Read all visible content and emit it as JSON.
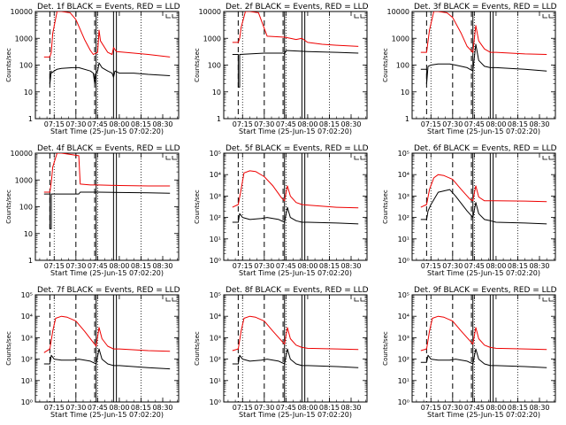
{
  "colors": {
    "events": "#000000",
    "lld": "#ee0000",
    "background": "#ffffff"
  },
  "x_tick_labels": [
    "07:15",
    "07:30",
    "07:45",
    "08:00",
    "08:15",
    "08:30"
  ],
  "xlabel": "Start Time (25-Jun-15 07:02:20)",
  "ylabel": "Counts/sec",
  "chart_data": [
    {
      "type": "line",
      "title": "Det. 1f  BLACK = Events, RED = LLD",
      "yscale": "log",
      "ylim": [
        1,
        10000
      ],
      "y_tick_labels": [
        "1",
        "10",
        "100",
        "1000",
        "10000"
      ],
      "xlabel": "Start Time (25-Jun-15 07:02:20)",
      "ylabel": "Counts/sec",
      "legend": "top-right",
      "series": [
        {
          "name": "Events",
          "x": [
            "07:12",
            "07:12",
            "07:13",
            "07:13",
            "07:15",
            "07:17",
            "07:20",
            "07:28",
            "07:32",
            "07:40",
            "07:42",
            "07:43",
            "07:44",
            "07:45",
            "07:46",
            "07:48",
            "07:52",
            "07:55",
            "07:56",
            "07:57",
            "08:00",
            "08:10",
            "08:20",
            "08:35"
          ],
          "values": [
            60,
            20,
            60,
            50,
            60,
            70,
            75,
            80,
            80,
            60,
            50,
            20,
            50,
            60,
            120,
            80,
            60,
            50,
            35,
            60,
            50,
            50,
            45,
            40
          ]
        },
        {
          "name": "LLD",
          "x": [
            "07:08",
            "07:12",
            "07:13",
            "07:14",
            "07:17",
            "07:20",
            "07:26",
            "07:30",
            "07:36",
            "07:40",
            "07:42",
            "07:45",
            "07:46",
            "07:47",
            "07:52",
            "07:55",
            "07:56",
            "07:58",
            "08:10",
            "08:20",
            "08:35"
          ],
          "values": [
            200,
            200,
            300,
            1500,
            10000,
            10000,
            9000,
            5000,
            900,
            350,
            250,
            300,
            2000,
            800,
            300,
            250,
            450,
            320,
            280,
            250,
            200
          ]
        }
      ]
    },
    {
      "type": "line",
      "title": "Det. 2f  BLACK = Events, RED = LLD",
      "yscale": "log",
      "ylim": [
        1,
        10000
      ],
      "y_tick_labels": [
        "1",
        "10",
        "100",
        "1000",
        "10000"
      ],
      "xlabel": "Start Time (25-Jun-15 07:02:20)",
      "ylabel": "Counts/sec",
      "legend": "top-right",
      "series": [
        {
          "name": "Events",
          "x": [
            "07:08",
            "07:12",
            "07:12",
            "07:13",
            "07:13",
            "07:30",
            "07:43",
            "07:44",
            "07:45",
            "08:00",
            "08:20",
            "08:35"
          ],
          "values": [
            250,
            250,
            15,
            15,
            250,
            280,
            280,
            260,
            350,
            320,
            300,
            280
          ]
        },
        {
          "name": "LLD",
          "x": [
            "07:08",
            "07:12",
            "07:13",
            "07:14",
            "07:17",
            "07:20",
            "07:26",
            "07:32",
            "07:44",
            "07:48",
            "07:52",
            "07:56",
            "08:00",
            "08:10",
            "08:20",
            "08:35"
          ],
          "values": [
            700,
            700,
            1000,
            2500,
            10000,
            10000,
            9000,
            1200,
            1100,
            1000,
            900,
            1000,
            700,
            600,
            550,
            500
          ]
        }
      ]
    },
    {
      "type": "line",
      "title": "Det. 3f  BLACK = Events, RED = LLD",
      "yscale": "log",
      "ylim": [
        1,
        10000
      ],
      "y_tick_labels": [
        "1",
        "10",
        "100",
        "1000",
        "10000"
      ],
      "xlabel": "Start Time (25-Jun-15 07:02:20)",
      "ylabel": "Counts/sec",
      "legend": "top-right",
      "series": [
        {
          "name": "Events",
          "x": [
            "07:08",
            "07:12",
            "07:12",
            "07:13",
            "07:15",
            "07:20",
            "07:28",
            "07:32",
            "07:40",
            "07:44",
            "07:46",
            "07:48",
            "07:52",
            "07:56",
            "08:00",
            "08:20",
            "08:35"
          ],
          "values": [
            70,
            70,
            20,
            90,
            100,
            110,
            110,
            100,
            80,
            60,
            600,
            150,
            90,
            80,
            80,
            70,
            60
          ]
        },
        {
          "name": "LLD",
          "x": [
            "07:08",
            "07:12",
            "07:14",
            "07:17",
            "07:20",
            "07:26",
            "07:30",
            "07:36",
            "07:40",
            "07:44",
            "07:46",
            "07:48",
            "07:52",
            "07:56",
            "08:00",
            "08:20",
            "08:35"
          ],
          "values": [
            300,
            300,
            2000,
            10000,
            10000,
            9000,
            6000,
            1500,
            500,
            300,
            3000,
            800,
            400,
            300,
            300,
            260,
            250
          ]
        }
      ]
    },
    {
      "type": "line",
      "title": "Det. 4f  BLACK = Events, RED = LLD",
      "yscale": "log",
      "ylim": [
        1,
        10000
      ],
      "y_tick_labels": [
        "1",
        "10",
        "100",
        "1000",
        "10000"
      ],
      "xlabel": "Start Time (25-Jun-15 07:02:20)",
      "ylabel": "Counts/sec",
      "legend": "top-right",
      "series": [
        {
          "name": "Events",
          "x": [
            "07:08",
            "07:12",
            "07:12",
            "07:13",
            "07:13",
            "07:32",
            "07:33",
            "07:40",
            "07:45",
            "08:00",
            "08:20",
            "08:35"
          ],
          "values": [
            300,
            300,
            15,
            15,
            300,
            300,
            350,
            350,
            350,
            340,
            330,
            320
          ]
        },
        {
          "name": "LLD",
          "x": [
            "07:08",
            "07:12",
            "07:13",
            "07:14",
            "07:17",
            "07:20",
            "07:26",
            "07:32",
            "07:33",
            "07:40",
            "07:45",
            "08:00",
            "08:20",
            "08:35"
          ],
          "values": [
            350,
            350,
            800,
            3000,
            10000,
            10000,
            9000,
            8000,
            700,
            650,
            650,
            620,
            600,
            600
          ]
        }
      ]
    },
    {
      "type": "line",
      "title": "Det. 5f  BLACK = Events, RED = LLD",
      "yscale": "log",
      "ylim": [
        1,
        100000
      ],
      "y_tick_labels": [
        "10⁰",
        "10¹",
        "10²",
        "10³",
        "10⁴",
        "10⁵"
      ],
      "xlabel": "Start Time (25-Jun-15 07:02:20)",
      "ylabel": "Counts/sec",
      "legend": "top-right",
      "series": [
        {
          "name": "Events",
          "x": [
            "07:08",
            "07:12",
            "07:13",
            "07:15",
            "07:20",
            "07:28",
            "07:32",
            "07:40",
            "07:44",
            "07:46",
            "07:48",
            "07:52",
            "07:56",
            "08:00",
            "08:20",
            "08:35"
          ],
          "values": [
            60,
            60,
            150,
            100,
            80,
            90,
            100,
            80,
            60,
            300,
            100,
            70,
            60,
            60,
            55,
            50
          ]
        },
        {
          "name": "LLD",
          "x": [
            "07:08",
            "07:12",
            "07:14",
            "07:16",
            "07:20",
            "07:24",
            "07:30",
            "07:36",
            "07:42",
            "07:44",
            "07:46",
            "07:48",
            "07:52",
            "07:56",
            "08:00",
            "08:20",
            "08:35"
          ],
          "values": [
            300,
            400,
            2000,
            12000,
            15000,
            14000,
            8000,
            3000,
            800,
            600,
            3000,
            1000,
            500,
            400,
            380,
            300,
            280
          ]
        }
      ]
    },
    {
      "type": "line",
      "title": "Det. 6f  BLACK = Events, RED = LLD",
      "yscale": "log",
      "ylim": [
        1,
        100000
      ],
      "y_tick_labels": [
        "10⁰",
        "10¹",
        "10²",
        "10³",
        "10⁴",
        "10⁵"
      ],
      "xlabel": "Start Time (25-Jun-15 07:02:20)",
      "ylabel": "Counts/sec",
      "legend": "top-right",
      "series": [
        {
          "name": "Events",
          "x": [
            "07:08",
            "07:12",
            "07:13",
            "07:15",
            "07:20",
            "07:28",
            "07:32",
            "07:40",
            "07:44",
            "07:46",
            "07:48",
            "07:52",
            "07:56",
            "08:00",
            "08:20",
            "08:35"
          ],
          "values": [
            80,
            80,
            200,
            400,
            1500,
            2000,
            1000,
            200,
            100,
            500,
            150,
            80,
            70,
            60,
            55,
            50
          ]
        },
        {
          "name": "LLD",
          "x": [
            "07:08",
            "07:12",
            "07:14",
            "07:17",
            "07:20",
            "07:24",
            "07:30",
            "07:36",
            "07:42",
            "07:44",
            "07:46",
            "07:48",
            "07:52",
            "07:56",
            "08:00",
            "08:20",
            "08:35"
          ],
          "values": [
            300,
            400,
            2000,
            7000,
            10000,
            9000,
            6000,
            2000,
            700,
            600,
            3000,
            900,
            600,
            600,
            600,
            580,
            550
          ]
        }
      ]
    },
    {
      "type": "line",
      "title": "Det. 7f  BLACK = Events, RED = LLD",
      "yscale": "log",
      "ylim": [
        1,
        100000
      ],
      "y_tick_labels": [
        "10⁰",
        "10¹",
        "10²",
        "10³",
        "10⁴",
        "10⁵"
      ],
      "xlabel": "Start Time (25-Jun-15 07:02:20)",
      "ylabel": "Counts/sec",
      "legend": "top-right",
      "series": [
        {
          "name": "Events",
          "x": [
            "07:08",
            "07:12",
            "07:13",
            "07:15",
            "07:20",
            "07:28",
            "07:32",
            "07:40",
            "07:44",
            "07:46",
            "07:48",
            "07:52",
            "07:56",
            "08:00",
            "08:20",
            "08:35"
          ],
          "values": [
            60,
            60,
            150,
            100,
            90,
            90,
            100,
            80,
            60,
            300,
            100,
            60,
            50,
            50,
            40,
            35
          ]
        },
        {
          "name": "LLD",
          "x": [
            "07:08",
            "07:12",
            "07:14",
            "07:16",
            "07:20",
            "07:24",
            "07:30",
            "07:36",
            "07:42",
            "07:44",
            "07:46",
            "07:48",
            "07:52",
            "07:56",
            "08:00",
            "08:20",
            "08:35"
          ],
          "values": [
            200,
            300,
            2000,
            8000,
            10000,
            9000,
            6000,
            2000,
            600,
            400,
            3000,
            900,
            400,
            300,
            300,
            250,
            230
          ]
        }
      ]
    },
    {
      "type": "line",
      "title": "Det. 8f  BLACK = Events, RED = LLD",
      "yscale": "log",
      "ylim": [
        1,
        100000
      ],
      "y_tick_labels": [
        "10⁰",
        "10¹",
        "10²",
        "10³",
        "10⁴",
        "10⁵"
      ],
      "xlabel": "Start Time (25-Jun-15 07:02:20)",
      "ylabel": "Counts/sec",
      "legend": "top-right",
      "series": [
        {
          "name": "Events",
          "x": [
            "07:08",
            "07:12",
            "07:13",
            "07:15",
            "07:20",
            "07:28",
            "07:32",
            "07:40",
            "07:44",
            "07:46",
            "07:48",
            "07:52",
            "07:56",
            "08:00",
            "08:20",
            "08:35"
          ],
          "values": [
            60,
            60,
            150,
            100,
            80,
            90,
            100,
            80,
            60,
            300,
            100,
            60,
            50,
            50,
            45,
            40
          ]
        },
        {
          "name": "LLD",
          "x": [
            "07:08",
            "07:12",
            "07:14",
            "07:16",
            "07:20",
            "07:24",
            "07:30",
            "07:36",
            "07:42",
            "07:44",
            "07:46",
            "07:48",
            "07:52",
            "07:56",
            "08:00",
            "08:20",
            "08:35"
          ],
          "values": [
            250,
            300,
            2000,
            8000,
            10000,
            9000,
            6000,
            2000,
            700,
            500,
            3000,
            900,
            450,
            350,
            320,
            300,
            280
          ]
        }
      ]
    },
    {
      "type": "line",
      "title": "Det. 9f  BLACK = Events, RED = LLD",
      "yscale": "log",
      "ylim": [
        1,
        100000
      ],
      "y_tick_labels": [
        "10⁰",
        "10¹",
        "10²",
        "10³",
        "10⁴",
        "10⁵"
      ],
      "xlabel": "Start Time (25-Jun-15 07:02:20)",
      "ylabel": "Counts/sec",
      "legend": "top-right",
      "series": [
        {
          "name": "Events",
          "x": [
            "07:08",
            "07:12",
            "07:13",
            "07:15",
            "07:20",
            "07:28",
            "07:32",
            "07:40",
            "07:44",
            "07:46",
            "07:48",
            "07:52",
            "07:56",
            "08:00",
            "08:20",
            "08:35"
          ],
          "values": [
            70,
            70,
            150,
            100,
            90,
            90,
            100,
            80,
            60,
            300,
            100,
            60,
            50,
            50,
            45,
            40
          ]
        },
        {
          "name": "LLD",
          "x": [
            "07:08",
            "07:12",
            "07:14",
            "07:16",
            "07:20",
            "07:24",
            "07:30",
            "07:36",
            "07:42",
            "07:44",
            "07:46",
            "07:48",
            "07:52",
            "07:56",
            "08:00",
            "08:20",
            "08:35"
          ],
          "values": [
            250,
            300,
            2000,
            8000,
            10000,
            9000,
            6000,
            2000,
            700,
            500,
            3000,
            900,
            450,
            350,
            320,
            300,
            280
          ]
        }
      ]
    }
  ],
  "markers": {
    "dashed": [
      "07:12",
      "07:30",
      "07:43"
    ],
    "dotted": [
      "07:15",
      "07:45",
      "08:15"
    ],
    "solid": [
      "07:44",
      "07:56",
      "07:58"
    ]
  }
}
